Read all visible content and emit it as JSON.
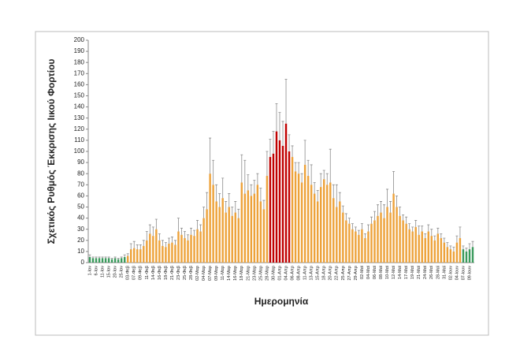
{
  "chart_data": {
    "type": "bar",
    "y_label": "Σχετικός Ρυθμός Έκκρισης Ιικού Φορτίου",
    "x_label": "Ημερομηνία",
    "categories": [
      "1-Ιαν",
      null,
      "6-Ιαν",
      null,
      "11-Ιαν",
      null,
      "15-Ιαν",
      null,
      "20-Ιαν",
      null,
      "25-Ιαν",
      null,
      "03-Φεβ",
      null,
      "07-Φεβ",
      null,
      "09-Φεβ",
      null,
      "11-Φεβ",
      null,
      "14-Φεβ",
      null,
      "16-Φεβ",
      null,
      "18-Φεβ",
      null,
      "21-Φεβ",
      null,
      "23-Φεβ",
      null,
      "25-Φεβ",
      null,
      "28-Φεβ",
      null,
      "02-Μαρ",
      null,
      "04-Μαρ",
      null,
      "07-Μαρ",
      null,
      "09-Μαρ",
      null,
      "11-Μαρ",
      null,
      "14-Μαρ",
      null,
      "16-Μαρ",
      null,
      "18-Μαρ",
      null,
      "21-Μαρ",
      null,
      "23-Μαρ",
      null,
      "25-Μαρ",
      null,
      "28-Μαρ",
      null,
      "30-Μαρ",
      null,
      "01-Απρ",
      null,
      "04-Απρ",
      null,
      "06-Απρ",
      null,
      "08-Απρ",
      null,
      "11-Απρ",
      null,
      "13-Απρ",
      null,
      "15-Απρ",
      null,
      "18-Απρ",
      null,
      "20-Απρ",
      null,
      "22-Απρ",
      null,
      "25-Απρ",
      null,
      "27-Απρ",
      null,
      "29-Απρ",
      null,
      "02-Μαϊ",
      null,
      "04-Μαϊ",
      null,
      "06-Μαϊ",
      null,
      "08-Μαϊ",
      null,
      "10-Μαϊ",
      null,
      "12-Μαϊ",
      null,
      "14-Μαϊ",
      null,
      "17-Μαϊ",
      null,
      "19-Μαϊ",
      null,
      "21-Μαϊ",
      null,
      "24-Μαϊ",
      null,
      "26-Μαϊ",
      null,
      "28-Μαϊ",
      null,
      "31-Μαϊ",
      null,
      "02-Ιουν",
      null,
      "04-Ιουν",
      null,
      "07-Ιουν",
      null,
      "09-Ιουν",
      null
    ],
    "values": [
      5,
      4,
      4,
      4,
      4,
      4,
      4,
      3,
      4,
      3,
      4,
      5,
      6,
      12,
      13,
      12,
      12,
      15,
      20,
      26,
      24,
      30,
      20,
      15,
      14,
      17,
      18,
      16,
      28,
      25,
      22,
      20,
      25,
      24,
      30,
      28,
      40,
      48,
      80,
      70,
      55,
      50,
      58,
      45,
      50,
      42,
      45,
      40,
      72,
      62,
      65,
      60,
      62,
      70,
      55,
      48,
      78,
      95,
      98,
      118,
      110,
      105,
      125,
      100,
      95,
      82,
      80,
      72,
      88,
      78,
      70,
      62,
      55,
      68,
      75,
      70,
      72,
      58,
      50,
      55,
      45,
      38,
      35,
      30,
      28,
      25,
      30,
      22,
      28,
      35,
      38,
      42,
      45,
      40,
      50,
      45,
      62,
      50,
      42,
      38,
      35,
      30,
      28,
      32,
      25,
      28,
      22,
      28,
      24,
      20,
      26,
      22,
      18,
      14,
      12,
      10,
      18,
      22,
      12,
      10,
      12,
      14
    ],
    "errors": [
      2,
      1,
      1,
      1,
      1,
      1,
      1,
      1,
      1,
      1,
      1,
      2,
      2,
      5,
      6,
      4,
      4,
      5,
      8,
      8,
      8,
      9,
      6,
      5,
      4,
      5,
      5,
      4,
      12,
      6,
      6,
      5,
      6,
      5,
      8,
      6,
      10,
      15,
      32,
      22,
      15,
      12,
      18,
      10,
      12,
      8,
      10,
      8,
      25,
      30,
      14,
      10,
      12,
      10,
      12,
      8,
      22,
      16,
      20,
      25,
      25,
      22,
      40,
      15,
      10,
      8,
      10,
      8,
      22,
      14,
      18,
      10,
      10,
      12,
      8,
      10,
      30,
      12,
      20,
      8,
      6,
      6,
      5,
      5,
      4,
      4,
      5,
      4,
      6,
      6,
      8,
      10,
      10,
      12,
      16,
      10,
      20,
      10,
      8,
      5,
      6,
      5,
      4,
      6,
      8,
      5,
      4,
      6,
      6,
      4,
      5,
      4,
      4,
      4,
      3,
      4,
      6,
      10,
      3,
      3,
      5,
      5
    ],
    "colors": [
      "#3a9a5c",
      "#3a9a5c",
      "#3a9a5c",
      "#3a9a5c",
      "#3a9a5c",
      "#3a9a5c",
      "#3a9a5c",
      "#3a9a5c",
      "#3a9a5c",
      "#3a9a5c",
      "#3a9a5c",
      "#3a9a5c",
      "#eda23a",
      "#eda23a",
      "#eda23a",
      "#eda23a",
      "#eda23a",
      "#eda23a",
      "#eda23a",
      "#eda23a",
      "#eda23a",
      "#eda23a",
      "#eda23a",
      "#eda23a",
      "#eda23a",
      "#eda23a",
      "#eda23a",
      "#eda23a",
      "#eda23a",
      "#eda23a",
      "#eda23a",
      "#eda23a",
      "#eda23a",
      "#eda23a",
      "#eda23a",
      "#eda23a",
      "#eda23a",
      "#eda23a",
      "#eda23a",
      "#eda23a",
      "#eda23a",
      "#eda23a",
      "#eda23a",
      "#eda23a",
      "#eda23a",
      "#eda23a",
      "#eda23a",
      "#eda23a",
      "#eda23a",
      "#eda23a",
      "#eda23a",
      "#eda23a",
      "#eda23a",
      "#eda23a",
      "#eda23a",
      "#eda23a",
      "#eda23a",
      "#c00000",
      "#c00000",
      "#c00000",
      "#c00000",
      "#c00000",
      "#c00000",
      "#c00000",
      "#eda23a",
      "#eda23a",
      "#eda23a",
      "#eda23a",
      "#eda23a",
      "#eda23a",
      "#eda23a",
      "#eda23a",
      "#eda23a",
      "#eda23a",
      "#eda23a",
      "#eda23a",
      "#eda23a",
      "#eda23a",
      "#eda23a",
      "#eda23a",
      "#eda23a",
      "#eda23a",
      "#eda23a",
      "#eda23a",
      "#eda23a",
      "#eda23a",
      "#eda23a",
      "#eda23a",
      "#eda23a",
      "#eda23a",
      "#eda23a",
      "#eda23a",
      "#eda23a",
      "#eda23a",
      "#eda23a",
      "#eda23a",
      "#eda23a",
      "#eda23a",
      "#eda23a",
      "#eda23a",
      "#eda23a",
      "#eda23a",
      "#eda23a",
      "#eda23a",
      "#eda23a",
      "#eda23a",
      "#eda23a",
      "#eda23a",
      "#eda23a",
      "#eda23a",
      "#eda23a",
      "#eda23a",
      "#eda23a",
      "#eda23a",
      "#eda23a",
      "#eda23a",
      "#eda23a",
      "#eda23a",
      "#3a9a5c",
      "#3a9a5c",
      "#3a9a5c",
      "#3a9a5c"
    ],
    "error_color": "#8c8c8c",
    "ylim": [
      0,
      200
    ],
    "yticks": [
      0,
      10,
      20,
      30,
      40,
      50,
      60,
      70,
      80,
      90,
      100,
      110,
      120,
      130,
      140,
      150,
      160,
      170,
      180,
      190,
      200
    ]
  }
}
